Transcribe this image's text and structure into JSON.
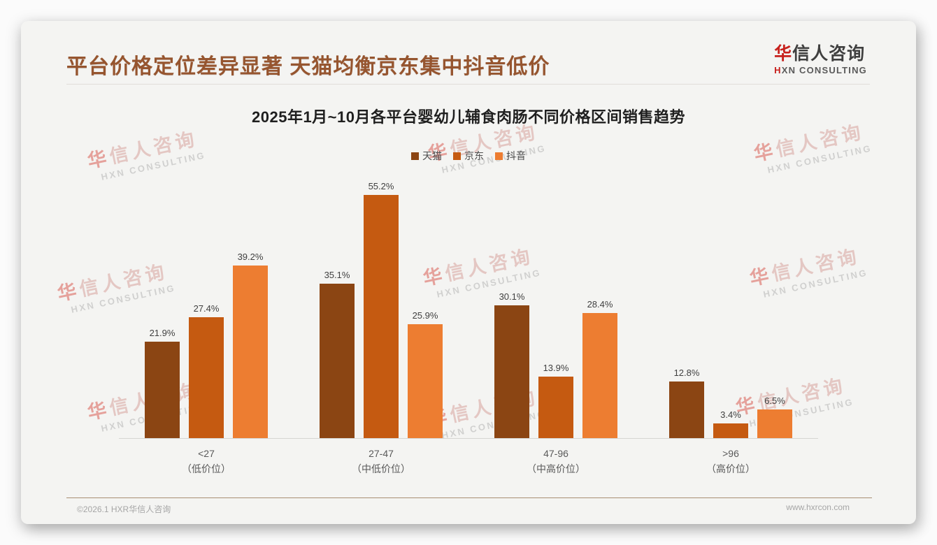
{
  "header": {
    "title": "平台价格定位差异显著 天猫均衡京东集中抖音低价",
    "title_color": "#96552F"
  },
  "logo": {
    "cn_first": "华",
    "cn_rest": "信人咨询",
    "en_first": "H",
    "en_rest": "XN CONSULTING",
    "red": "#C7201C"
  },
  "watermark": {
    "cn_first": "华",
    "cn_rest": "信人咨询",
    "en": "HXN CONSULTING"
  },
  "footer": {
    "left": "©2026.1 HXR华信人咨询",
    "right": "www.hxrcon.com"
  },
  "chart_data": {
    "type": "bar",
    "title": "2025年1月~10月各平台婴幼儿辅食肉肠不同价格区间销售趋势",
    "categories": [
      {
        "range": "<27",
        "tier": "（低价位）"
      },
      {
        "range": "27-47",
        "tier": "（中低价位）"
      },
      {
        "range": "47-96",
        "tier": "（中高价位）"
      },
      {
        "range": ">96",
        "tier": "（高价位）"
      }
    ],
    "series": [
      {
        "name": "天猫",
        "color": "#8B4513",
        "values": [
          21.9,
          35.1,
          30.1,
          12.8
        ]
      },
      {
        "name": "京东",
        "color": "#C55A11",
        "values": [
          27.4,
          55.2,
          13.9,
          3.4
        ]
      },
      {
        "name": "抖音",
        "color": "#ED7D31",
        "values": [
          39.2,
          25.9,
          28.4,
          6.5
        ]
      }
    ],
    "value_suffix": "%",
    "xlabel": "",
    "ylabel": "",
    "ylim": [
      0,
      60
    ],
    "grid": false,
    "legend_position": "top",
    "axis_line_color": "#d6d5d2"
  }
}
